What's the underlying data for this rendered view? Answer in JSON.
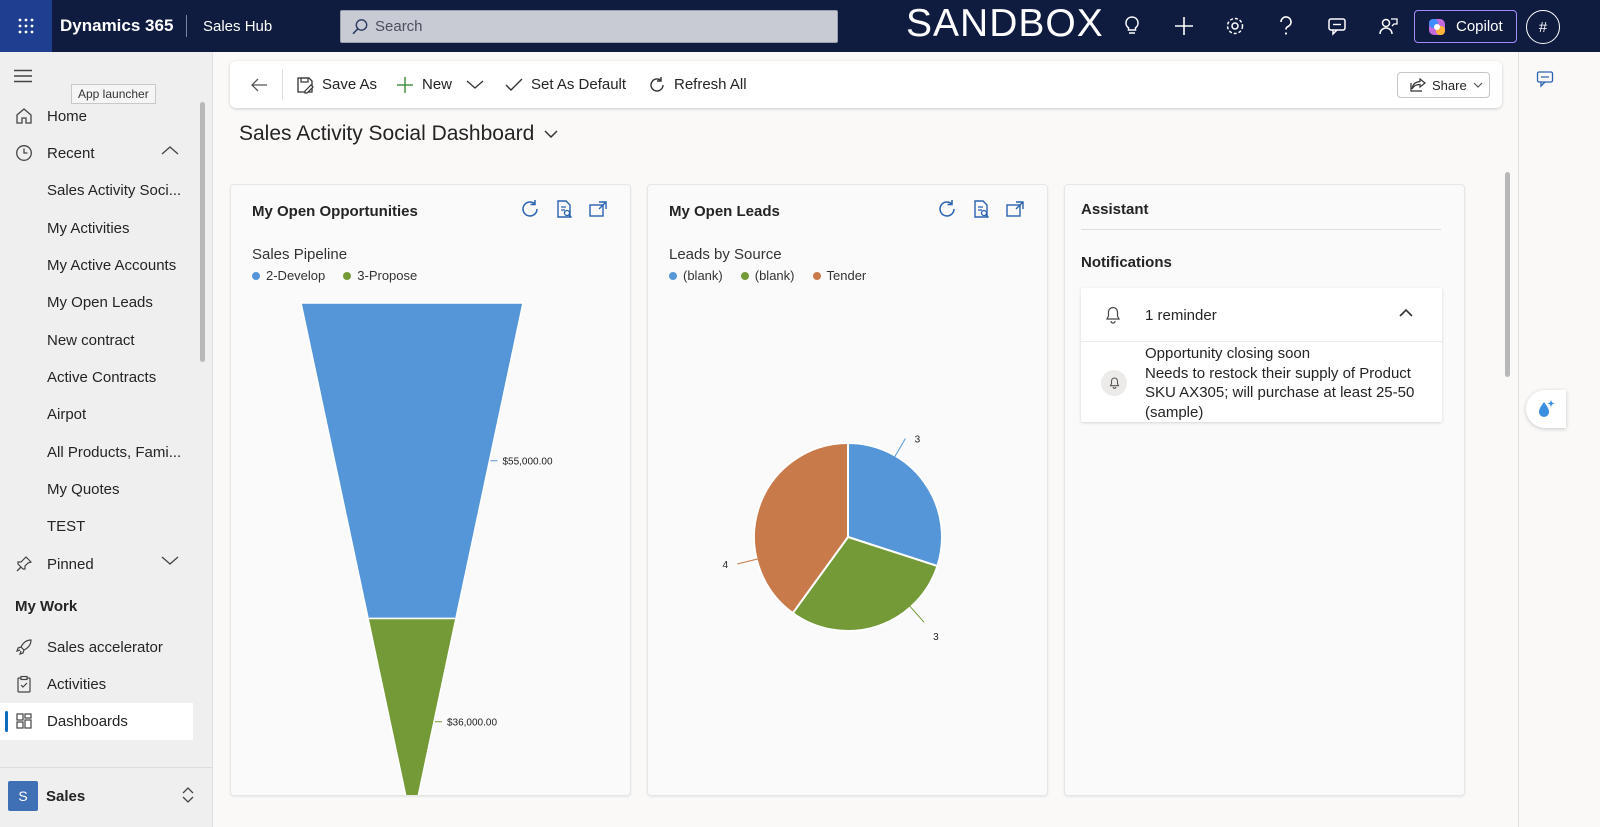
{
  "topbar": {
    "app_name": "Dynamics 365",
    "app_sub": "Sales Hub",
    "search_placeholder": "Search",
    "environment": "SANDBOX",
    "copilot_label": "Copilot",
    "profile_initial": "#",
    "icons": [
      "app-launcher-icon",
      "lightbulb-icon",
      "plus-icon",
      "gear-icon",
      "help-icon",
      "chat-icon",
      "people-icon"
    ]
  },
  "sidebar": {
    "tooltip": "App launcher",
    "items": [
      {
        "label": "Home",
        "icon": "home-icon"
      },
      {
        "label": "Recent",
        "icon": "clock-icon"
      },
      {
        "label": "Sales Activity Soci..."
      },
      {
        "label": "My Activities"
      },
      {
        "label": "My Active Accounts"
      },
      {
        "label": "My Open Leads"
      },
      {
        "label": "New contract"
      },
      {
        "label": "Active Contracts"
      },
      {
        "label": "Airpot"
      },
      {
        "label": "All Products, Fami..."
      },
      {
        "label": "My Quotes"
      },
      {
        "label": "TEST"
      },
      {
        "label": "Pinned",
        "icon": "pin-icon"
      }
    ],
    "section_title": "My Work",
    "work_items": [
      {
        "label": "Sales accelerator",
        "icon": "rocket-icon"
      },
      {
        "label": "Activities",
        "icon": "clipboard-icon"
      },
      {
        "label": "Dashboards",
        "icon": "dashboard-icon",
        "selected": true
      }
    ],
    "area": {
      "badge": "S",
      "label": "Sales"
    }
  },
  "commandbar": {
    "save_as": "Save As",
    "new": "New",
    "set_default": "Set As Default",
    "refresh_all": "Refresh All",
    "share": "Share"
  },
  "dashboard": {
    "title": "Sales Activity Social Dashboard"
  },
  "opportunities": {
    "title": "My Open Opportunities",
    "chart_title": "Sales Pipeline",
    "legend": [
      {
        "label": "2-Develop",
        "color": "#5596d8"
      },
      {
        "label": "3-Propose",
        "color": "#739a36"
      }
    ]
  },
  "leads": {
    "title": "My Open Leads",
    "chart_title": "Leads by Source",
    "legend": [
      {
        "label": "(blank)",
        "color": "#5596d8"
      },
      {
        "label": "(blank)",
        "color": "#739a36"
      },
      {
        "label": "Tender",
        "color": "#c97a4a"
      }
    ]
  },
  "assistant": {
    "title": "Assistant",
    "notifications_title": "Notifications",
    "reminder_count": "1 reminder",
    "notification_heading": "Opportunity closing soon",
    "notification_body": "Needs to restock their supply of Product SKU AX305; will purchase at least 25-50 (sample)"
  },
  "chart_data": [
    {
      "type": "funnel",
      "title": "Sales Pipeline",
      "categories": [
        "2-Develop",
        "3-Propose"
      ],
      "values": [
        55000,
        36000
      ],
      "data_labels": [
        "$55,000.00",
        "$36,000.00"
      ],
      "colors": [
        "#5596d8",
        "#739a36"
      ],
      "legend": "top-left"
    },
    {
      "type": "pie",
      "title": "Leads by Source",
      "categories": [
        "(blank)",
        "(blank)",
        "Tender"
      ],
      "values": [
        3,
        3,
        4
      ],
      "colors": [
        "#5596d8",
        "#739a36",
        "#c97a4a"
      ],
      "legend": "top-left"
    }
  ]
}
